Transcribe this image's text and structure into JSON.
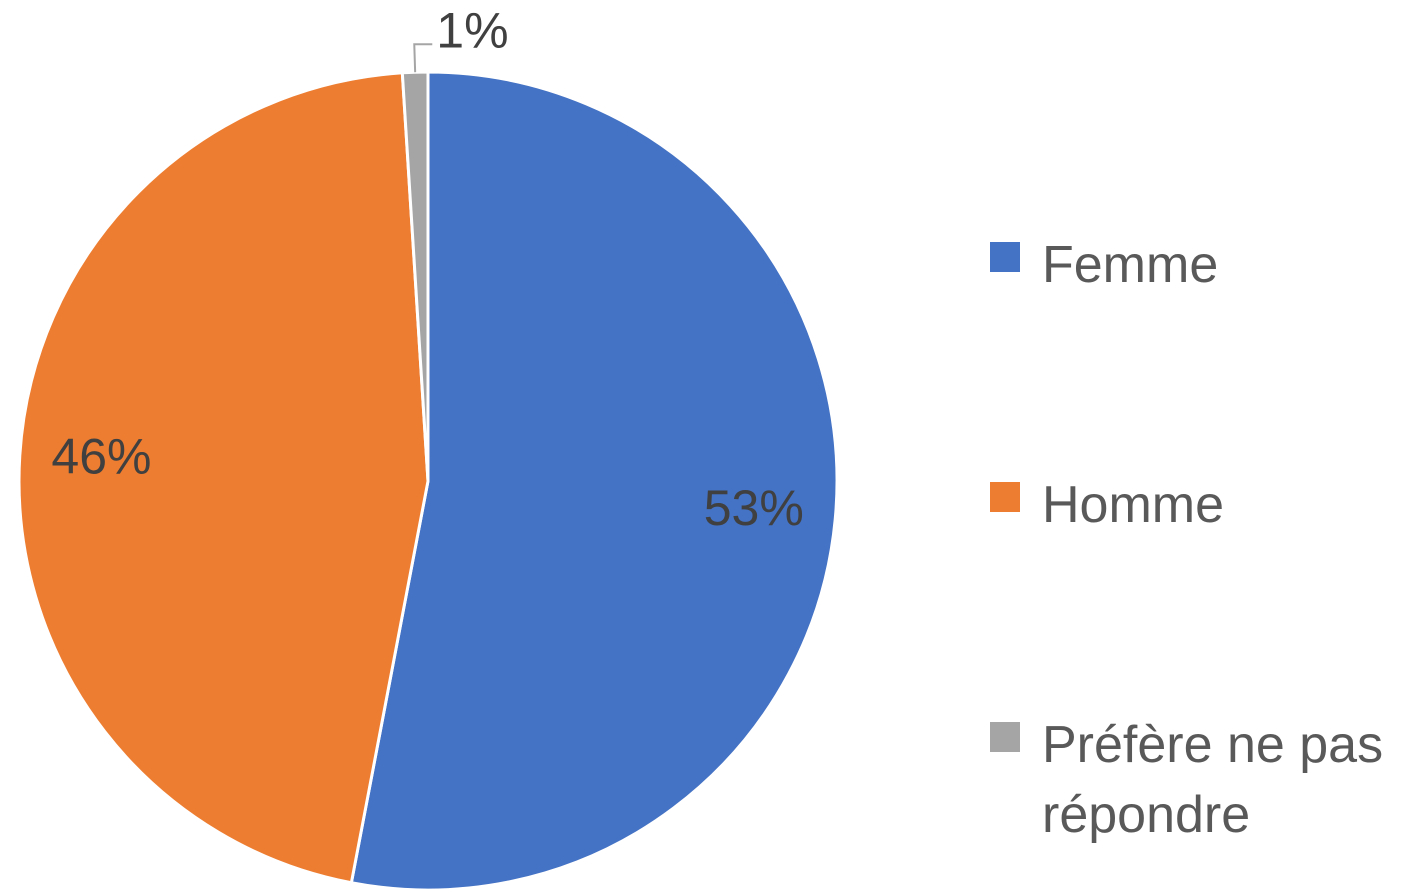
{
  "chart_data": {
    "type": "pie",
    "categories": [
      "Femme",
      "Homme",
      "Préfère ne pas répondre"
    ],
    "values": [
      53,
      46,
      1
    ],
    "value_labels": [
      "53%",
      "46%",
      "1%"
    ],
    "colors": [
      "#4472c4",
      "#ed7d31",
      "#a5a5a5"
    ],
    "legend": "right"
  }
}
